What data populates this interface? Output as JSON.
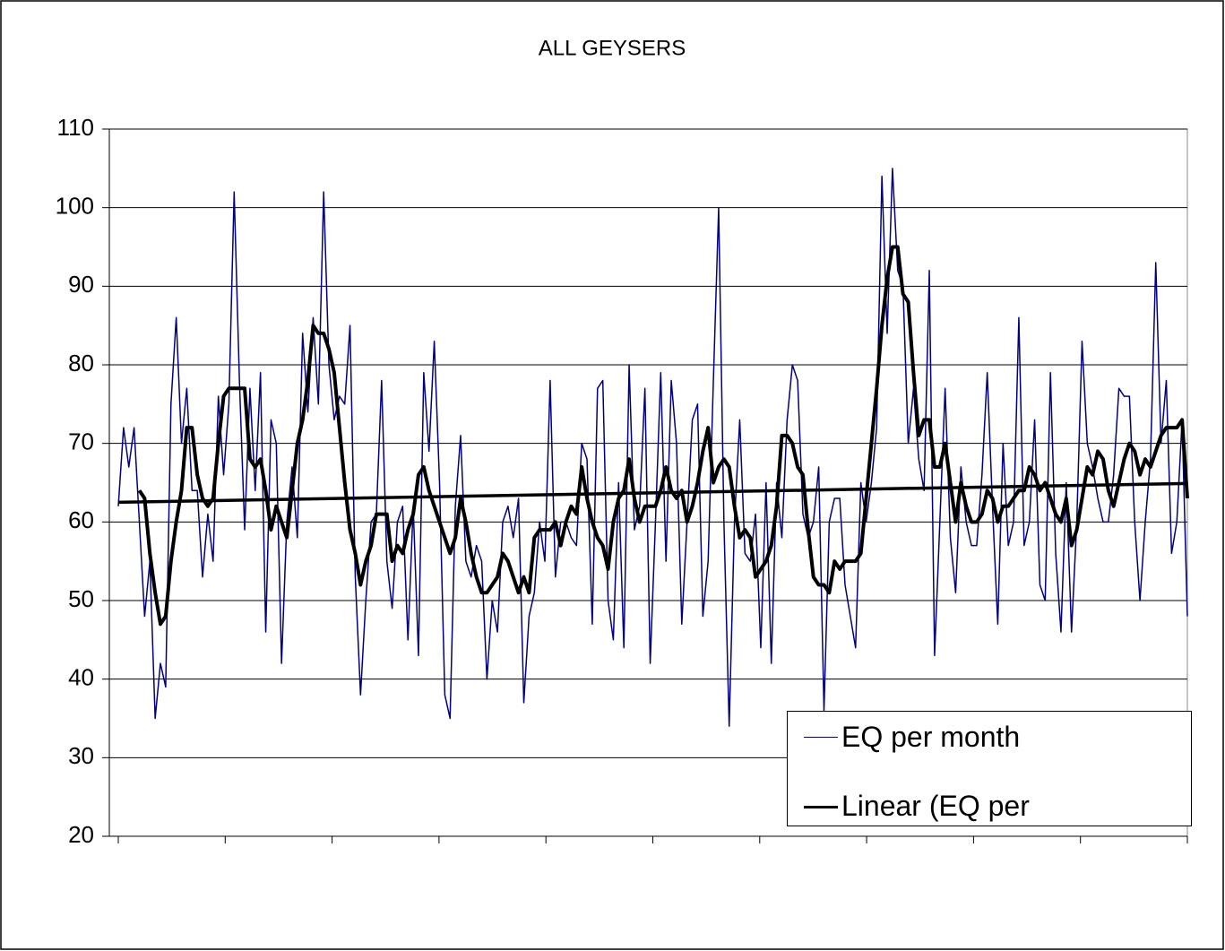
{
  "chart_data": {
    "type": "line",
    "title": "ALL GEYSERS",
    "ylim": [
      20,
      110
    ],
    "yticks": [
      20,
      30,
      40,
      50,
      60,
      70,
      80,
      90,
      100,
      110
    ],
    "grid": true,
    "xlim": [
      0,
      203
    ],
    "legend": "bottom-right",
    "series": [
      {
        "name": "EQ per month",
        "color": "#000080",
        "values": [
          62,
          72,
          67,
          72,
          60,
          48,
          55,
          35,
          42,
          39,
          75,
          86,
          70,
          77,
          64,
          64,
          53,
          61,
          55,
          76,
          66,
          75,
          102,
          78,
          59,
          77,
          64,
          79,
          46,
          73,
          70,
          42,
          60,
          67,
          58,
          84,
          74,
          86,
          75,
          102,
          80,
          73,
          76,
          75,
          85,
          53,
          38,
          50,
          60,
          61,
          78,
          55,
          49,
          60,
          62,
          45,
          62,
          43,
          79,
          69,
          83,
          65,
          38,
          35,
          62,
          71,
          55,
          53,
          57,
          55,
          40,
          50,
          46,
          60,
          62,
          58,
          63,
          37,
          48,
          51,
          60,
          55,
          78,
          53,
          60,
          60,
          58,
          57,
          70,
          68,
          47,
          77,
          78,
          50,
          45,
          65,
          44,
          80,
          59,
          62,
          77,
          42,
          60,
          79,
          55,
          78,
          70,
          47,
          60,
          73,
          75,
          48,
          55,
          78,
          100,
          60,
          34,
          60,
          73,
          56,
          55,
          61,
          44,
          65,
          42,
          65,
          58,
          73,
          80,
          78,
          61,
          58,
          60,
          67,
          36,
          60,
          63,
          63,
          52,
          48,
          44,
          65,
          60,
          65,
          72,
          104,
          84,
          105,
          92,
          90,
          70,
          77,
          68,
          64,
          92,
          43,
          60,
          77,
          58,
          51,
          67,
          60,
          57,
          57,
          66,
          79,
          62,
          47,
          70,
          57,
          60,
          86,
          57,
          60,
          73,
          52,
          50,
          79,
          56,
          46,
          65,
          46,
          60,
          83,
          70,
          67,
          63,
          60,
          60,
          66,
          77,
          76,
          76,
          60,
          50,
          60,
          68,
          93,
          70,
          78,
          56,
          60,
          73,
          48
        ]
      },
      {
        "color": "#000000",
        "values": [
          null,
          null,
          null,
          null,
          64,
          63,
          56,
          51,
          47,
          48,
          55,
          60,
          64,
          72,
          72,
          66,
          63,
          62,
          63,
          70,
          76,
          77,
          77,
          77,
          77,
          68,
          67,
          68,
          64,
          59,
          62,
          60,
          58,
          64,
          70,
          73,
          78,
          85,
          84,
          84,
          82,
          79,
          72,
          65,
          59,
          56,
          52,
          55,
          57,
          61,
          61,
          61,
          55,
          57,
          56,
          59,
          61,
          66,
          67,
          64,
          62,
          60,
          58,
          56,
          58,
          63,
          60,
          56,
          53,
          51,
          51,
          52,
          53,
          56,
          55,
          53,
          51,
          53,
          51,
          58,
          59,
          59,
          59,
          60,
          57,
          60,
          62,
          61,
          67,
          63,
          60,
          58,
          57,
          54,
          60,
          63,
          64,
          68,
          63,
          60,
          62,
          62,
          62,
          64,
          67,
          64,
          63,
          64,
          60,
          62,
          65,
          69,
          72,
          65,
          67,
          68,
          67,
          62,
          58,
          59,
          58,
          53,
          54,
          55,
          57,
          62,
          71,
          71,
          70,
          67,
          66,
          59,
          53,
          52,
          52,
          51,
          55,
          54,
          55,
          55,
          55,
          56,
          63,
          70,
          77,
          85,
          91,
          95,
          95,
          89,
          88,
          79,
          71,
          73,
          73,
          67,
          67,
          70,
          65,
          60,
          65,
          62,
          60,
          60,
          61,
          64,
          63,
          60,
          62,
          62,
          63,
          64,
          64,
          67,
          66,
          64,
          65,
          63,
          61,
          60,
          63,
          57,
          59,
          63,
          67,
          66,
          69,
          68,
          64,
          62,
          65,
          68,
          70,
          69,
          66,
          68,
          67,
          69,
          71,
          72,
          72,
          72,
          73,
          63
        ]
      },
      {
        "name": "Linear (EQ per month)",
        "color": "#000000",
        "x": [
          0,
          203
        ],
        "values": [
          62.5,
          64.9
        ]
      }
    ]
  }
}
